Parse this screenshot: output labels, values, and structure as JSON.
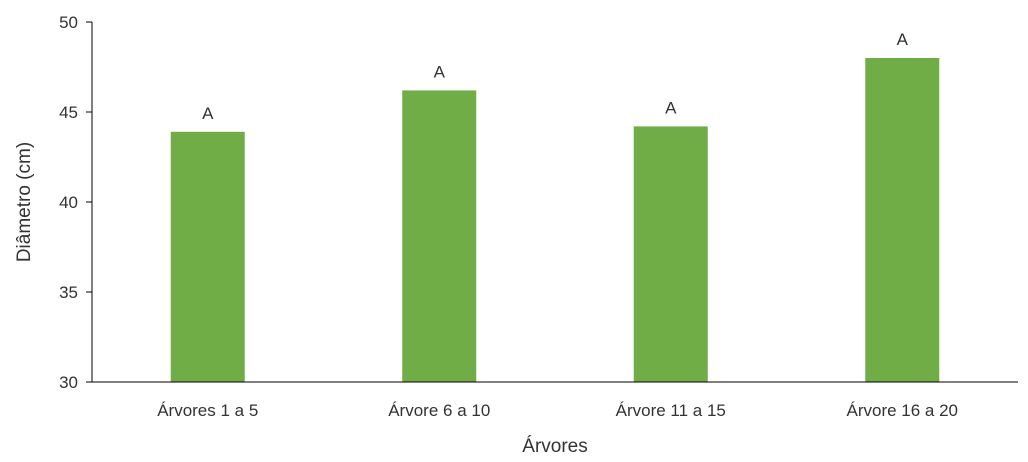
{
  "chart_data": {
    "type": "bar",
    "title": "",
    "xlabel": "Árvores",
    "ylabel": "Diâmetro  (cm)",
    "categories": [
      "Árvores 1 a 5",
      "Árvore 6 a 10",
      "Árvore 11 a 15",
      "Árvore 16 a 20"
    ],
    "values": [
      43.9,
      46.2,
      44.2,
      48.0
    ],
    "data_labels": [
      "A",
      "A",
      "A",
      "A"
    ],
    "ylim": [
      30,
      50
    ],
    "yticks": [
      30,
      35,
      40,
      45,
      50
    ],
    "grid": false,
    "legend": "none",
    "bar_color": "#70AD47",
    "axis_color": "#000000"
  }
}
